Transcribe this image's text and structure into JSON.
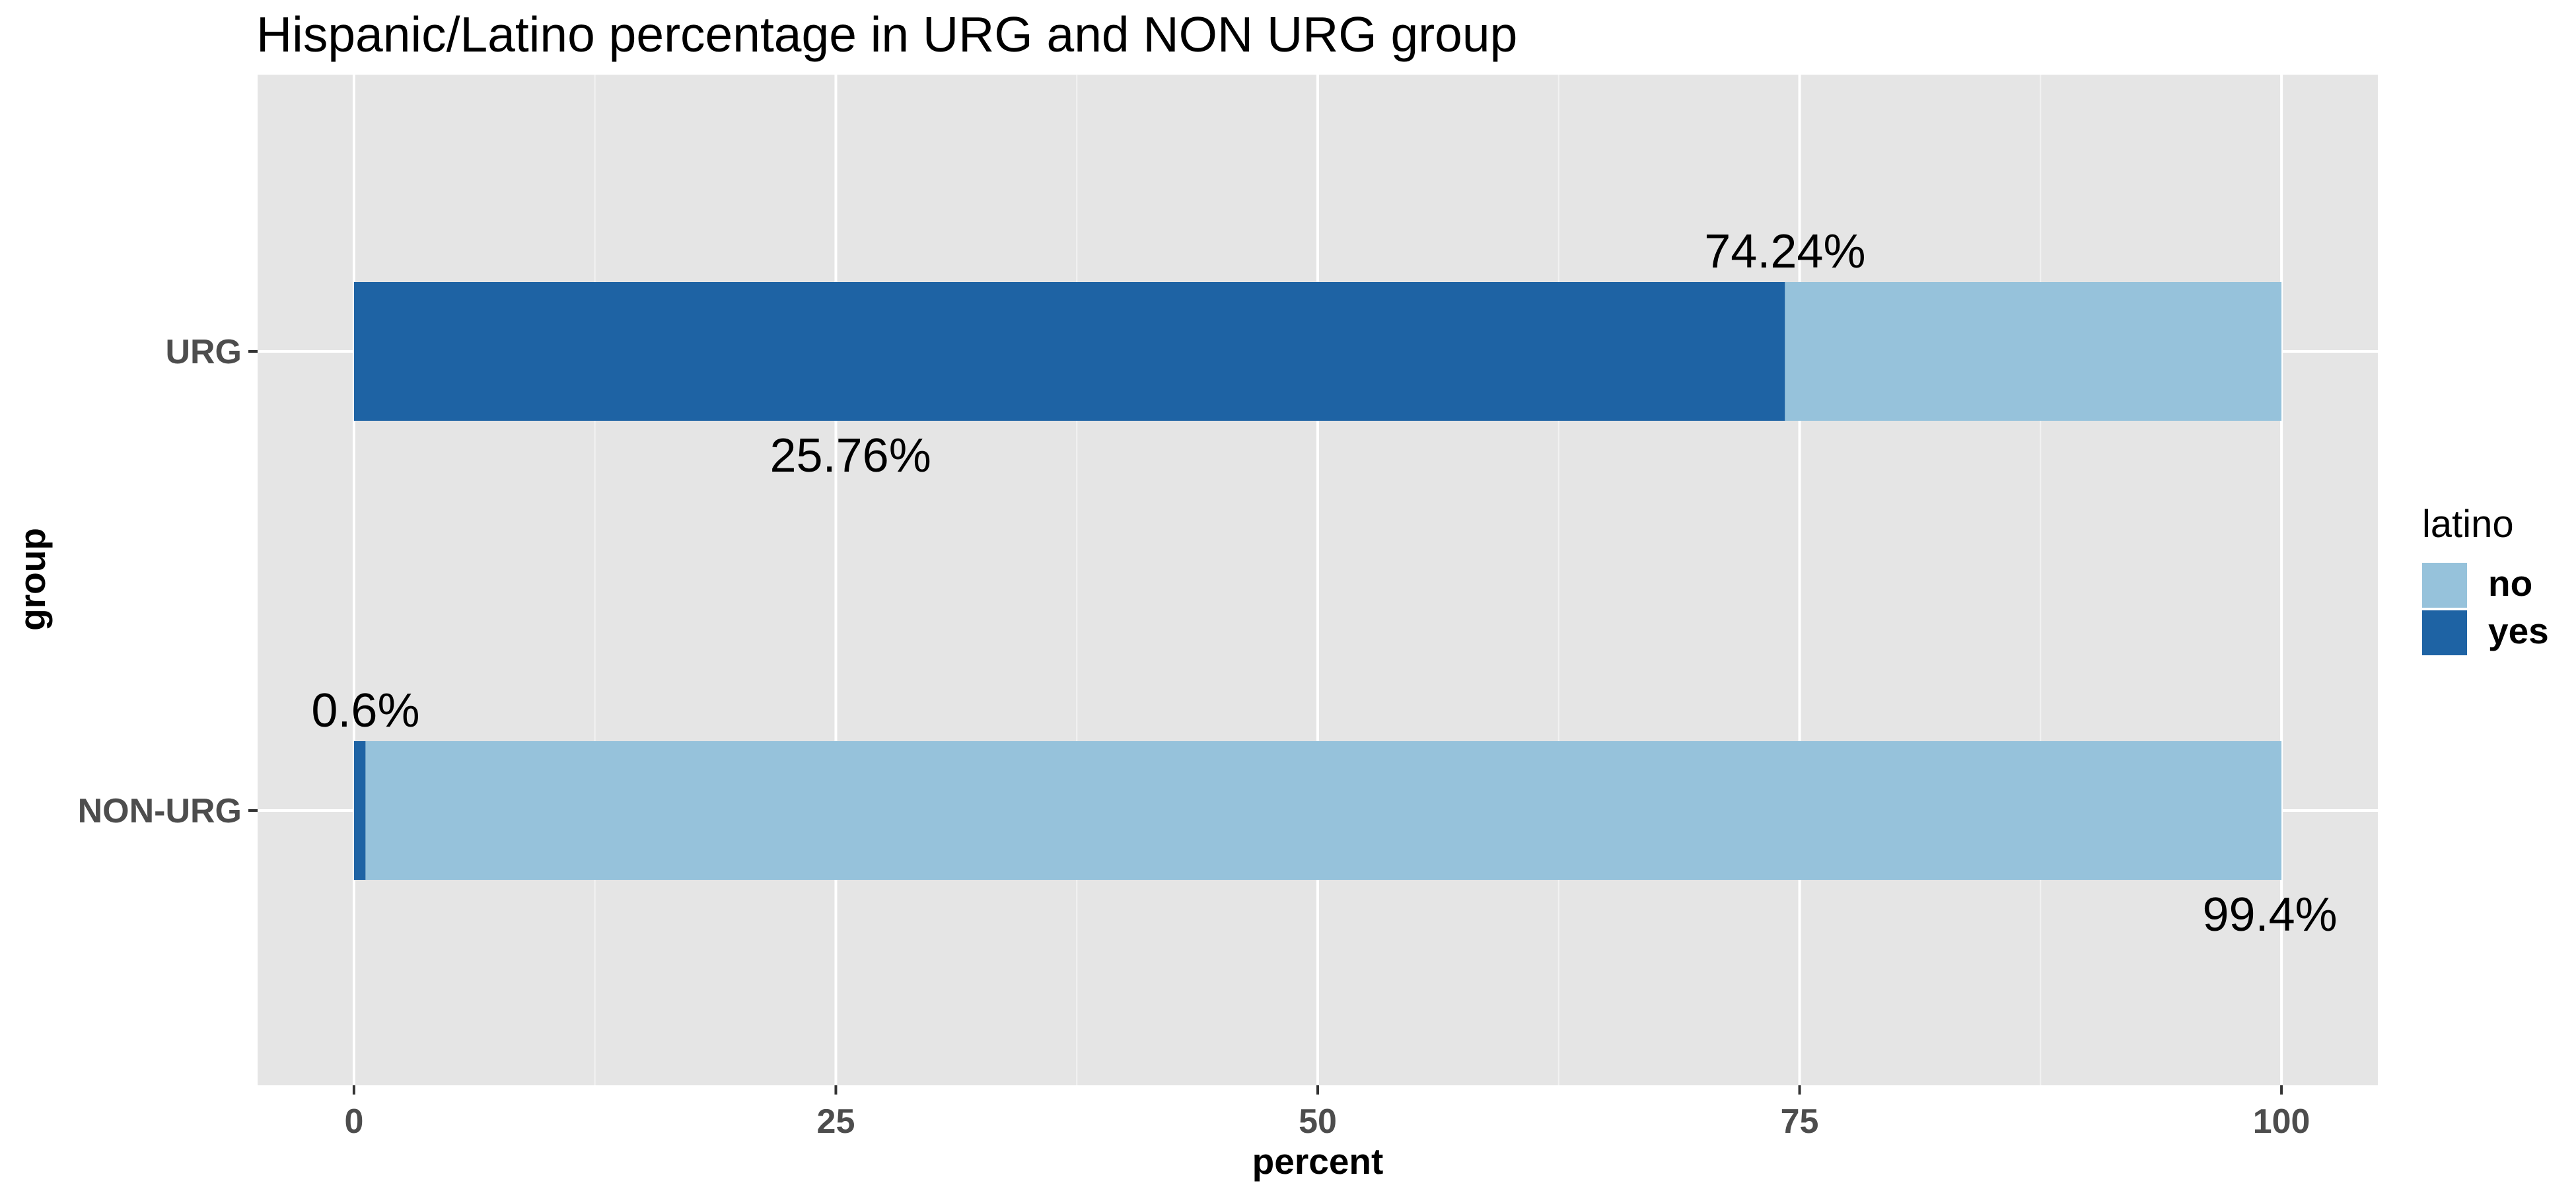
{
  "chart_data": {
    "type": "bar",
    "orientation": "horizontal",
    "stacked": true,
    "title": "Hispanic/Latino percentage in URG and NON URG group",
    "xlabel": "percent",
    "ylabel": "group",
    "xlim": [
      -5,
      105
    ],
    "x_ticks": [
      "0",
      "25",
      "50",
      "75",
      "100"
    ],
    "x_tick_values": [
      0,
      25,
      50,
      75,
      100
    ],
    "categories": [
      "URG",
      "NON-URG"
    ],
    "grid": true,
    "legend": {
      "title": "latino",
      "position": "right",
      "items": [
        {
          "name": "no",
          "color": "#96c2db"
        },
        {
          "name": "yes",
          "color": "#1e63a4"
        }
      ]
    },
    "series": [
      {
        "name": "yes",
        "color": "#1e63a4",
        "values": [
          74.24,
          0.6
        ],
        "labels": [
          "74.24%",
          "0.6%"
        ]
      },
      {
        "name": "no",
        "color": "#96c2db",
        "values": [
          25.76,
          99.4
        ],
        "labels": [
          "25.76%",
          "99.4%"
        ]
      }
    ],
    "label_placement": [
      {
        "category": "URG",
        "text": "74.24%",
        "x": 74.24,
        "side": "above"
      },
      {
        "category": "URG",
        "text": "25.76%",
        "x": 25.76,
        "side": "below"
      },
      {
        "category": "NON-URG",
        "text": "0.6%",
        "x": 0.6,
        "side": "above"
      },
      {
        "category": "NON-URG",
        "text": "99.4%",
        "x": 99.4,
        "side": "below"
      }
    ],
    "colors": {
      "panel_background": "#e5e5e5",
      "grid_major": "#ffffff",
      "grid_minor": "#f2f2f2",
      "tick_text": "#4d4d4d"
    }
  }
}
